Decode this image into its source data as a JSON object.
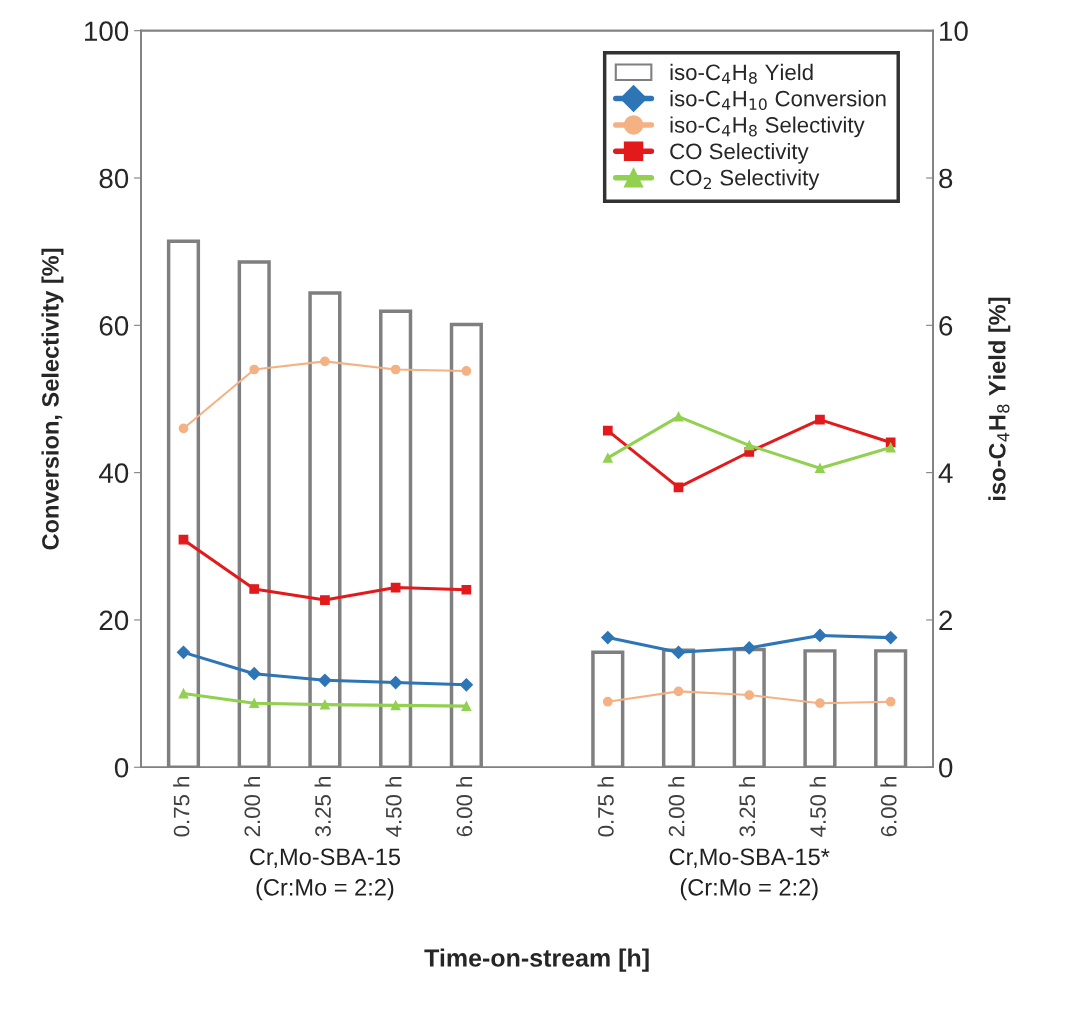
{
  "chart_data": {
    "type": "line",
    "xlabel": "Time-on-stream [h]",
    "ylabel": "Conversion, Selectivity [%]",
    "y2label": "iso-C$_{4}$H$_{8}$ Yield [%]",
    "categories": [
      "0.75 h",
      "2.00 h",
      "3.25 h",
      "4.50 h",
      "6.00 h",
      null,
      "0.75 h",
      "2.00 h",
      "3.25 h",
      "4.50 h",
      "6.00 h"
    ],
    "series": [
      {
        "name": "iso-C$_{4}$H$_{8}$ Yield",
        "type": "bar",
        "axis": "y2",
        "color": "#7f7f7f",
        "values": [
          7.14,
          6.86,
          6.44,
          6.19,
          6.01,
          null,
          1.56,
          1.59,
          1.6,
          1.58,
          1.58
        ]
      },
      {
        "name": "iso-C$_{4}$H$_{10}$ Conversion",
        "color": "#2e75b6",
        "marker": "diamond",
        "values": [
          15.6,
          12.7,
          11.8,
          11.5,
          11.2,
          null,
          17.6,
          15.6,
          16.2,
          17.9,
          17.6
        ]
      },
      {
        "name": "iso-C$_{4}$H$_{8}$ Selectivity",
        "color": "#f4b183",
        "marker": "circle",
        "values": [
          46.0,
          54.0,
          55.1,
          54.0,
          53.8,
          null,
          8.9,
          10.3,
          9.8,
          8.7,
          8.9
        ]
      },
      {
        "name": "CO Selectivity",
        "color": "#e31a1c",
        "marker": "square",
        "values": [
          30.9,
          24.2,
          22.7,
          24.4,
          24.1,
          null,
          45.7,
          38.0,
          42.8,
          47.2,
          44.1
        ]
      },
      {
        "name": "CO$_{2}$ Selectivity",
        "color": "#92d050",
        "marker": "triangle",
        "values": [
          10.0,
          8.7,
          8.5,
          8.4,
          8.3,
          null,
          42.0,
          47.6,
          43.7,
          40.6,
          43.4
        ]
      }
    ],
    "ylim": [
      0,
      100
    ],
    "yticks": [
      0,
      20,
      40,
      60,
      80,
      100
    ],
    "y2lim": [
      0,
      10
    ],
    "y2ticks": [
      0,
      2,
      4,
      6,
      8,
      10
    ],
    "legend": "top right",
    "grid": false,
    "annotations": [
      "Cr,Mo-SBA-15\n(Cr:Mo = 2:2)",
      "Cr,Mo-SBA-15*\n(Cr:Mo = 2:2)"
    ]
  }
}
